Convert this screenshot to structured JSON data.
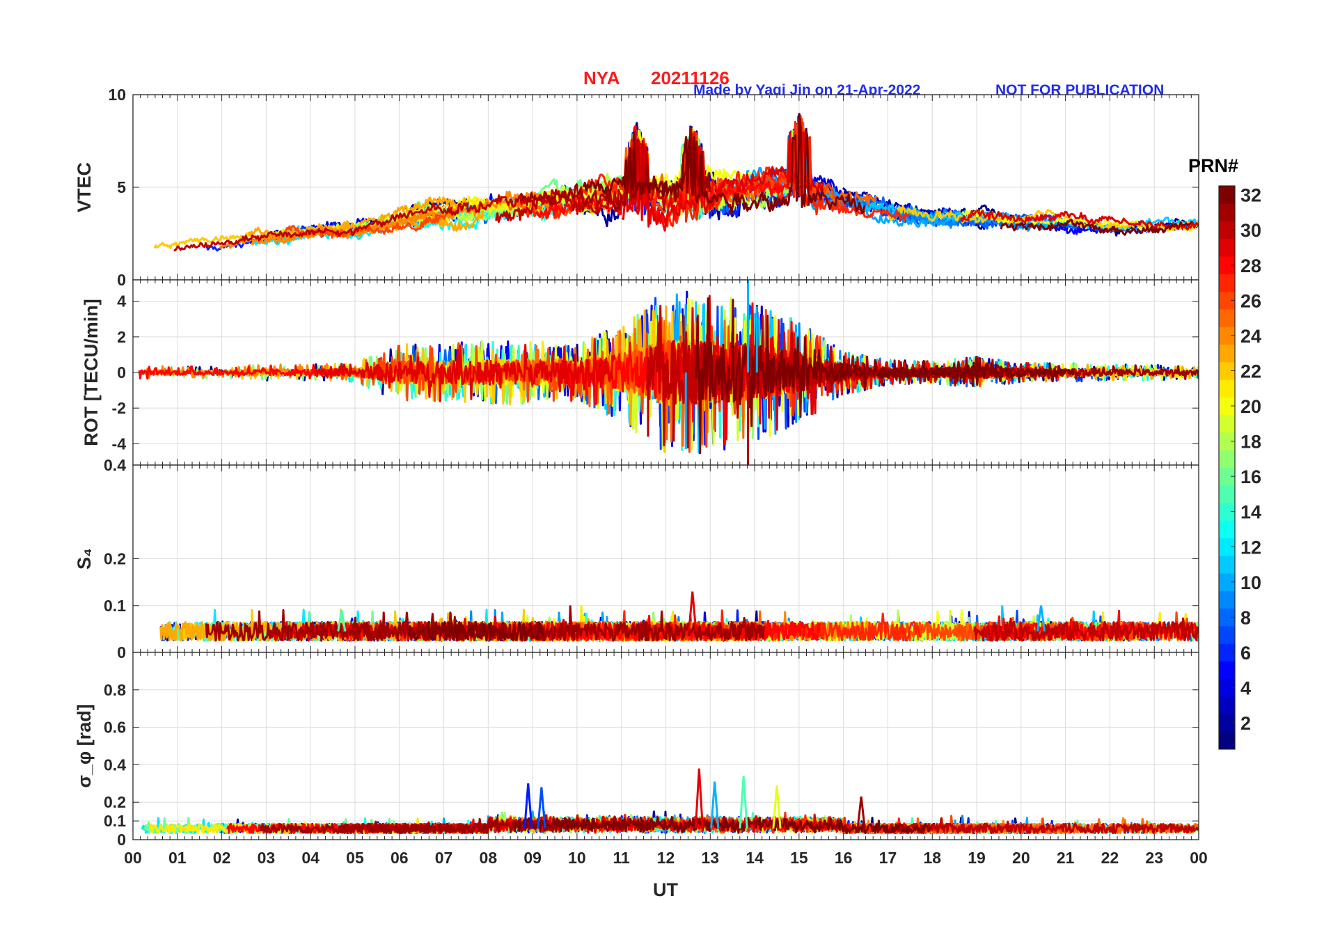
{
  "title": {
    "station": "NYA",
    "date": "20211126",
    "credit": "Made by Yaqi Jin on 21-Apr-2022",
    "notice": "NOT FOR PUBLICATION"
  },
  "chart_data": {
    "type": "line",
    "x_label": "UT",
    "x_range": [
      0,
      24
    ],
    "x_tick_labels": [
      "00",
      "01",
      "02",
      "03",
      "04",
      "05",
      "06",
      "07",
      "08",
      "09",
      "10",
      "11",
      "12",
      "13",
      "14",
      "15",
      "16",
      "17",
      "18",
      "19",
      "20",
      "21",
      "22",
      "23",
      "00"
    ],
    "colorbar": {
      "title": "PRN#",
      "range": [
        1,
        32
      ],
      "tick_labels": [
        "2",
        "4",
        "6",
        "8",
        "10",
        "12",
        "14",
        "16",
        "18",
        "20",
        "22",
        "24",
        "26",
        "28",
        "30",
        "32"
      ],
      "colormap": "jet"
    },
    "panels": [
      {
        "id": "vtec",
        "ylabel": "VTEC",
        "ylim": [
          0,
          10
        ],
        "y_ticks": [
          0,
          5,
          10
        ],
        "y_tick_labels": [
          "0",
          "5",
          "10"
        ],
        "envelope": {
          "hours": [
            0,
            1,
            2,
            3,
            4,
            5,
            6,
            7,
            8,
            9,
            10,
            11,
            12,
            13,
            14,
            15,
            16,
            17,
            18,
            19,
            20,
            21,
            22,
            23,
            24
          ],
          "mean": [
            1.8,
            2.0,
            2.0,
            2.4,
            2.6,
            2.8,
            3.2,
            3.6,
            4.0,
            4.1,
            4.4,
            4.7,
            4.6,
            4.8,
            4.9,
            5.0,
            4.4,
            3.9,
            3.4,
            3.3,
            3.2,
            3.1,
            2.9,
            2.8,
            2.9
          ],
          "spread": [
            0.7,
            0.6,
            0.5,
            0.7,
            0.8,
            0.8,
            0.9,
            1.1,
            1.3,
            1.4,
            1.6,
            2.0,
            2.4,
            2.1,
            1.9,
            1.8,
            1.4,
            1.1,
            0.9,
            0.9,
            0.8,
            0.8,
            0.7,
            0.7,
            0.7
          ],
          "peak": [
            {
              "hour": 11.35,
              "value": 8.6
            },
            {
              "hour": 12.6,
              "value": 8.6
            },
            {
              "hour": 15.0,
              "value": 9.2
            }
          ]
        }
      },
      {
        "id": "rot",
        "ylabel": "ROT [TECU/min]",
        "ylim": [
          -5.2,
          5.2
        ],
        "y_ticks": [
          -4,
          -2,
          0,
          2,
          4
        ],
        "y_tick_labels": [
          "-4",
          "-2",
          "0",
          "2",
          "4"
        ],
        "envelope": {
          "hours": [
            0,
            1,
            2,
            3,
            4,
            5,
            6,
            7,
            8,
            9,
            10,
            11,
            12,
            13,
            14,
            15,
            16,
            17,
            18,
            19,
            20,
            21,
            22,
            23,
            24
          ],
          "amplitude": [
            0.2,
            0.2,
            0.2,
            0.25,
            0.25,
            0.3,
            0.9,
            0.9,
            1.0,
            1.0,
            0.9,
            1.5,
            2.6,
            2.5,
            2.2,
            1.6,
            0.7,
            0.4,
            0.35,
            0.5,
            0.3,
            0.3,
            0.25,
            0.25,
            0.2
          ],
          "spikes": [
            {
              "hour": 13.85,
              "value": 5.2
            },
            {
              "hour": 13.85,
              "value": -5.2
            },
            {
              "hour": 12.45,
              "value": -4.3
            },
            {
              "hour": 11.6,
              "value": -3.6
            },
            {
              "hour": 14.05,
              "value": 3.7
            },
            {
              "hour": 12.4,
              "value": 3.2
            }
          ]
        }
      },
      {
        "id": "s4",
        "ylabel": "S₄",
        "ylim": [
          0,
          0.4
        ],
        "y_ticks": [
          0,
          0.1,
          0.2,
          0.4
        ],
        "y_tick_labels": [
          "0",
          "0.1",
          "0.2",
          "0.4"
        ],
        "envelope": {
          "baseline": 0.045,
          "spread": 0.02,
          "peak": [
            {
              "hour": 12.6,
              "value": 0.13
            },
            {
              "hour": 20.45,
              "value": 0.1
            },
            {
              "hour": 4.7,
              "value": 0.09
            }
          ]
        }
      },
      {
        "id": "sigma_phi",
        "ylabel": "σ_φ [rad]",
        "ylim": [
          0,
          1
        ],
        "y_ticks": [
          0,
          0.1,
          0.2,
          0.4,
          0.6,
          0.8
        ],
        "y_tick_labels": [
          "0",
          "0.1",
          "0.2",
          "0.4",
          "0.6",
          "0.8"
        ],
        "envelope": {
          "baseline": 0.06,
          "spread": 0.025,
          "peak": [
            {
              "hour": 12.75,
              "value": 0.38
            },
            {
              "hour": 13.1,
              "value": 0.31
            },
            {
              "hour": 13.75,
              "value": 0.34
            },
            {
              "hour": 14.5,
              "value": 0.29
            },
            {
              "hour": 8.9,
              "value": 0.3
            },
            {
              "hour": 9.2,
              "value": 0.28
            },
            {
              "hour": 16.4,
              "value": 0.23
            }
          ]
        }
      }
    ]
  }
}
